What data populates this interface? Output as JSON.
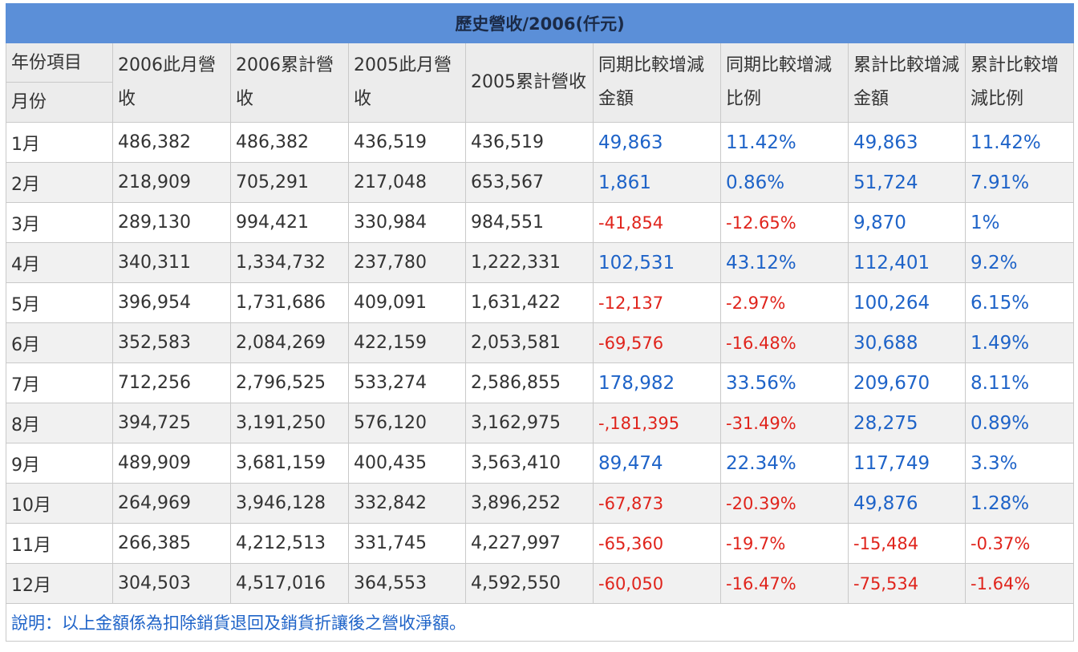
{
  "title": "歷史營收/2006(仟元)",
  "corner": {
    "top": "年份項目",
    "bottom": "月份"
  },
  "columns": [
    "2006此月營收",
    "2006累計營收",
    "2005此月營收",
    "2005累計營收",
    "同期比較增減金額",
    "同期比較增減比例",
    "累計比較增減金額",
    "累計比較增減比例"
  ],
  "rows": [
    {
      "month": "1月",
      "cells": [
        "486,382",
        "486,382",
        "436,519",
        "436,519",
        "49,863",
        "11.42%",
        "49,863",
        "11.42%"
      ]
    },
    {
      "month": "2月",
      "cells": [
        "218,909",
        "705,291",
        "217,048",
        "653,567",
        "1,861",
        "0.86%",
        "51,724",
        "7.91%"
      ]
    },
    {
      "month": "3月",
      "cells": [
        "289,130",
        "994,421",
        "330,984",
        "984,551",
        "-41,854",
        "-12.65%",
        "9,870",
        "1%"
      ]
    },
    {
      "month": "4月",
      "cells": [
        "340,311",
        "1,334,732",
        "237,780",
        "1,222,331",
        "102,531",
        "43.12%",
        "112,401",
        "9.2%"
      ]
    },
    {
      "month": "5月",
      "cells": [
        "396,954",
        "1,731,686",
        "409,091",
        "1,631,422",
        "-12,137",
        "-2.97%",
        "100,264",
        "6.15%"
      ]
    },
    {
      "month": "6月",
      "cells": [
        "352,583",
        "2,084,269",
        "422,159",
        "2,053,581",
        "-69,576",
        "-16.48%",
        "30,688",
        "1.49%"
      ]
    },
    {
      "month": "7月",
      "cells": [
        "712,256",
        "2,796,525",
        "533,274",
        "2,586,855",
        "178,982",
        "33.56%",
        "209,670",
        "8.11%"
      ]
    },
    {
      "month": "8月",
      "cells": [
        "394,725",
        "3,191,250",
        "576,120",
        "3,162,975",
        "-,181,395",
        "-31.49%",
        "28,275",
        "0.89%"
      ]
    },
    {
      "month": "9月",
      "cells": [
        "489,909",
        "3,681,159",
        "400,435",
        "3,563,410",
        "89,474",
        "22.34%",
        "117,749",
        "3.3%"
      ]
    },
    {
      "month": "10月",
      "cells": [
        "264,969",
        "3,946,128",
        "332,842",
        "3,896,252",
        "-67,873",
        "-20.39%",
        "49,876",
        "1.28%"
      ]
    },
    {
      "month": "11月",
      "cells": [
        "266,385",
        "4,212,513",
        "331,745",
        "4,227,997",
        "-65,360",
        "-19.7%",
        "-15,484",
        "-0.37%"
      ]
    },
    {
      "month": "12月",
      "cells": [
        "304,503",
        "4,517,016",
        "364,553",
        "4,592,550",
        "-60,050",
        "-16.47%",
        "-75,534",
        "-1.64%"
      ]
    }
  ],
  "note": "說明：以上金額係為扣除銷貨退回及銷貨折讓後之營收淨額。",
  "colors": {
    "header_bar": "#5b8fd8",
    "positive": "#1e63c8",
    "negative": "#e0241c"
  }
}
